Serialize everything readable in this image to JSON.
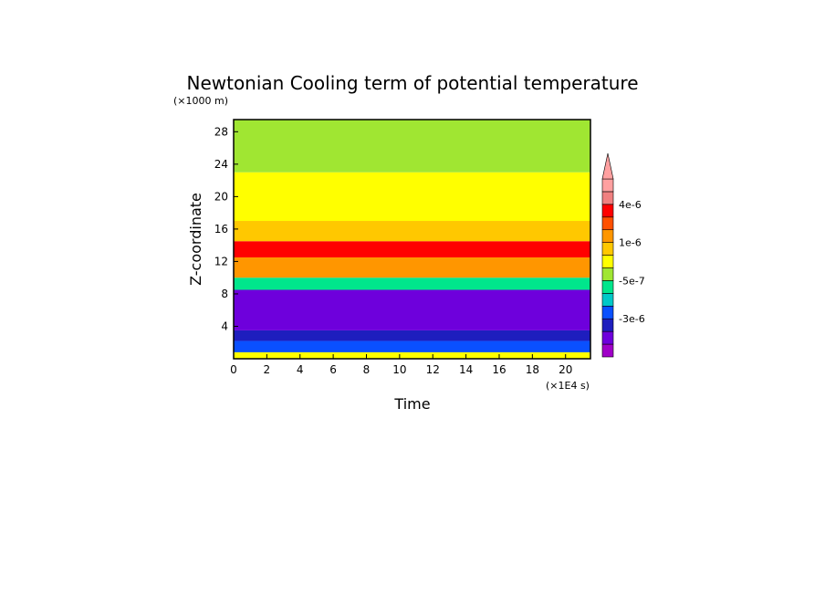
{
  "chart_data": {
    "type": "heatmap",
    "title": "Newtonian Cooling term of potential temperature",
    "xlabel": "Time",
    "ylabel": "Z-coordinate",
    "x_unit_label": "(×1E4 s)",
    "y_unit_label": "(×1000 m)",
    "xlim": [
      0,
      21.5
    ],
    "ylim": [
      0,
      29.5
    ],
    "x_ticks": [
      0,
      2,
      4,
      6,
      8,
      10,
      12,
      14,
      16,
      18,
      20
    ],
    "y_ticks": [
      4,
      8,
      12,
      16,
      20,
      24,
      28
    ],
    "colorbar": {
      "colors": [
        "#a000c8",
        "#6e00dc",
        "#1e1ebe",
        "#0a50ff",
        "#00c8c8",
        "#00e68c",
        "#a0e632",
        "#ffff00",
        "#ffc800",
        "#ff9600",
        "#ff5000",
        "#ff0000",
        "#f08080",
        "#ffa0a0"
      ],
      "labels": [
        "4e-6",
        "1e-6",
        "-5e-7",
        "-3e-6"
      ],
      "extend_top": true
    },
    "bands": [
      {
        "y0": 0.0,
        "y1": 0.8,
        "z": "neg_small"
      },
      {
        "y0": 0.8,
        "y1": 2.2,
        "z": "neg_large"
      },
      {
        "y0": 2.2,
        "y1": 3.5,
        "z": "neg_medium"
      },
      {
        "y0": 3.5,
        "y1": 8.5,
        "z": "neg_max"
      },
      {
        "y0": 8.5,
        "y1": 10.0,
        "z": "zero"
      },
      {
        "y0": 10.0,
        "y1": 12.5,
        "z": "pos_medium"
      },
      {
        "y0": 12.5,
        "y1": 14.5,
        "z": "pos_max"
      },
      {
        "y0": 14.5,
        "y1": 17.0,
        "z": "pos_small"
      },
      {
        "y0": 17.0,
        "y1": 23.0,
        "z": "neg_small"
      },
      {
        "y0": 23.0,
        "y1": 29.5,
        "z": "near_zero"
      }
    ]
  }
}
